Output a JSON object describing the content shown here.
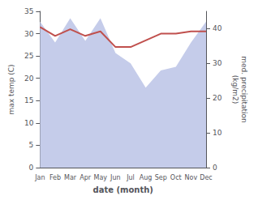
{
  "chart_data": {
    "type": "line",
    "xlabel": "date (month)",
    "ylabel": "max temp (C)",
    "y2label": "med. precipitation\n(kg/m2)",
    "categories": [
      "Jan",
      "Feb",
      "Mar",
      "Apr",
      "May",
      "Jun",
      "Jul",
      "Aug",
      "Sep",
      "Oct",
      "Nov",
      "Dec"
    ],
    "series": [
      {
        "type": "area",
        "axis": "y2",
        "color": "#c5ccea",
        "values": [
          42.0,
          36.0,
          43.0,
          36.5,
          43.0,
          33.0,
          30.0,
          23.0,
          28.0,
          29.0,
          36.0,
          42.0
        ]
      },
      {
        "type": "line",
        "color": "#c0504d",
        "values": [
          31.5,
          29.5,
          31.0,
          29.5,
          30.5,
          27.0,
          27.0,
          28.5,
          30.0,
          30.0,
          30.5,
          30.5
        ]
      }
    ],
    "ylim": [
      0,
      35
    ],
    "yticks": [
      0,
      5,
      10,
      15,
      20,
      25,
      30,
      35
    ],
    "y2lim": [
      0,
      45
    ],
    "y2ticks": [
      0,
      10,
      20,
      30,
      40
    ],
    "grid": false
  }
}
